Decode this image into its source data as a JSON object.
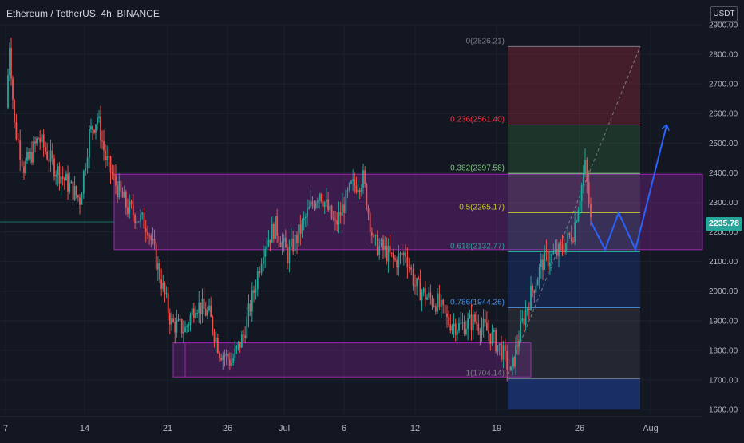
{
  "header": {
    "symbol_title": "Ethereum / TetherUS, 4h, BINANCE",
    "currency": "USDT"
  },
  "price_axis": {
    "labels": [
      "2900.00",
      "2800.00",
      "2700.00",
      "2600.00",
      "2500.00",
      "2400.00",
      "2300.00",
      "2200.00",
      "2100.00",
      "2000.00",
      "1900.00",
      "1800.00",
      "1700.00",
      "1600.00"
    ],
    "current_price": "2235.78"
  },
  "time_axis": {
    "labels": [
      "7",
      "14",
      "21",
      "26",
      "Jul",
      "6",
      "12",
      "19",
      "26",
      "Aug"
    ]
  },
  "fib_levels": [
    {
      "label": "0(2826.21)",
      "color": "#787b86"
    },
    {
      "label": "0.236(2561.40)",
      "color": "#f23645"
    },
    {
      "label": "0.382(2397.58)",
      "color": "#81c784"
    },
    {
      "label": "0.5(2265.17)",
      "color": "#c0ca33"
    },
    {
      "label": "0.618(2132.77)",
      "color": "#26a69a"
    },
    {
      "label": "0.786(1944.26)",
      "color": "#4a90e2"
    },
    {
      "label": "1(1704.14)",
      "color": "#787b86"
    }
  ],
  "colors": {
    "background": "#131722",
    "up": "#26a69a",
    "down": "#ef5350",
    "zone": "#9c27b0",
    "projection": "#2962ff",
    "accent": "#26a69a"
  },
  "chart_data": {
    "type": "candlestick",
    "symbol": "Ethereum / TetherUS",
    "interval": "4h",
    "exchange": "BINANCE",
    "ylim": [
      1600,
      2900
    ],
    "x_ticks": [
      "7",
      "14",
      "21",
      "26",
      "Jul",
      "6",
      "12",
      "19",
      "26",
      "Aug"
    ],
    "path": [
      {
        "x": "Jun 7",
        "y": 2620
      },
      {
        "x": "Jun 8",
        "y": 2840
      },
      {
        "x": "Jun 9",
        "y": 2560
      },
      {
        "x": "Jun 10",
        "y": 2420
      },
      {
        "x": "Jun 11",
        "y": 2450
      },
      {
        "x": "Jun 12",
        "y": 2520
      },
      {
        "x": "Jun 13",
        "y": 2420
      },
      {
        "x": "Jun 14",
        "y": 2310
      },
      {
        "x": "Jun 15",
        "y": 2530
      },
      {
        "x": "Jun 16",
        "y": 2590
      },
      {
        "x": "Jun 17",
        "y": 2450
      },
      {
        "x": "Jun 18",
        "y": 2360
      },
      {
        "x": "Jun 19",
        "y": 2280
      },
      {
        "x": "Jun 20",
        "y": 2220
      },
      {
        "x": "Jun 21",
        "y": 1890
      },
      {
        "x": "Jun 22",
        "y": 1870
      },
      {
        "x": "Jun 23",
        "y": 1960
      },
      {
        "x": "Jun 24",
        "y": 1920
      },
      {
        "x": "Jun 25",
        "y": 1800
      },
      {
        "x": "Jun 26",
        "y": 1760
      },
      {
        "x": "Jun 27",
        "y": 1850
      },
      {
        "x": "Jun 28",
        "y": 2000
      },
      {
        "x": "Jun 29",
        "y": 2150
      },
      {
        "x": "Jun 30",
        "y": 2220
      },
      {
        "x": "Jul 1",
        "y": 2120
      },
      {
        "x": "Jul 2",
        "y": 2180
      },
      {
        "x": "Jul 3",
        "y": 2260
      },
      {
        "x": "Jul 4",
        "y": 2340
      },
      {
        "x": "Jul 5",
        "y": 2220
      },
      {
        "x": "Jul 6",
        "y": 2350
      },
      {
        "x": "Jul 7",
        "y": 2380
      },
      {
        "x": "Jul 8",
        "y": 2160
      },
      {
        "x": "Jul 9",
        "y": 2140
      },
      {
        "x": "Jul 10",
        "y": 2100
      },
      {
        "x": "Jul 11",
        "y": 2130
      },
      {
        "x": "Jul 12",
        "y": 2020
      },
      {
        "x": "Jul 13",
        "y": 1980
      },
      {
        "x": "Jul 14",
        "y": 1960
      },
      {
        "x": "Jul 15",
        "y": 1900
      },
      {
        "x": "Jul 16",
        "y": 1880
      },
      {
        "x": "Jul 17",
        "y": 1900
      },
      {
        "x": "Jul 18",
        "y": 1860
      },
      {
        "x": "Jul 19",
        "y": 1800
      },
      {
        "x": "Jul 20",
        "y": 1720
      },
      {
        "x": "Jul 21",
        "y": 1850
      },
      {
        "x": "Jul 22",
        "y": 1990
      },
      {
        "x": "Jul 23",
        "y": 2100
      },
      {
        "x": "Jul 24",
        "y": 2130
      },
      {
        "x": "Jul 25",
        "y": 2200
      },
      {
        "x": "Jul 26",
        "y": 2420
      },
      {
        "x": "Jul 26b",
        "y": 2235
      }
    ],
    "fib_retracement": [
      {
        "ratio": 0,
        "price": 2826.21
      },
      {
        "ratio": 0.236,
        "price": 2561.4
      },
      {
        "ratio": 0.382,
        "price": 2397.58
      },
      {
        "ratio": 0.5,
        "price": 2265.17
      },
      {
        "ratio": 0.618,
        "price": 2132.77
      },
      {
        "ratio": 0.786,
        "price": 1944.26
      },
      {
        "ratio": 1,
        "price": 1704.14
      }
    ],
    "zones": [
      {
        "from": "Jun 17",
        "to": "end",
        "ymin": 2140,
        "ymax": 2395
      },
      {
        "from": "Jun 21",
        "to": "Jul 20",
        "ymin": 1710,
        "ymax": 1825
      }
    ],
    "projection_path": [
      {
        "x": "Jul 26",
        "y": 2235
      },
      {
        "x": "Jul 27",
        "y": 2140
      },
      {
        "x": "Jul 28",
        "y": 2265
      },
      {
        "x": "Jul 30",
        "y": 2140
      },
      {
        "x": "Aug 1",
        "y": 2560
      }
    ],
    "last_price": 2235.78,
    "grid": true
  }
}
